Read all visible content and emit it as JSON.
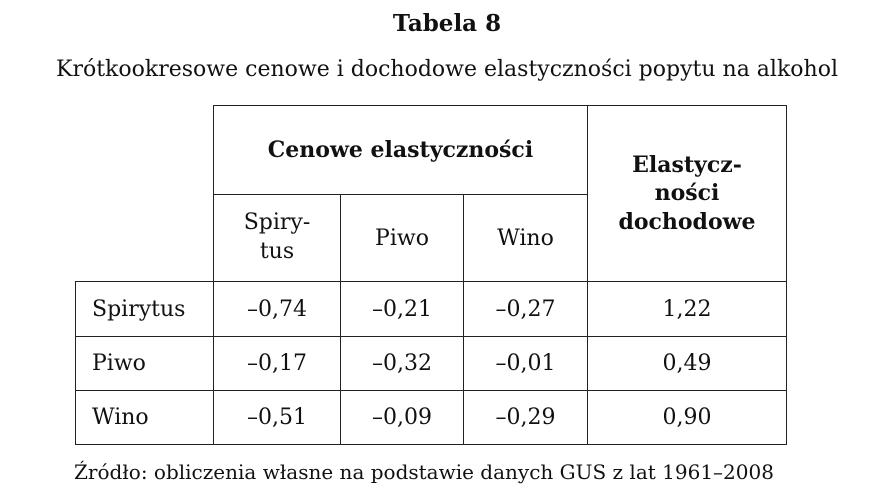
{
  "table_label": "Tabela 8",
  "table_title": "Krótkookresowe cenowe i dochodowe elastyczności popytu na alkohol",
  "table": {
    "group_header": "Cenowe elastyczności",
    "income_header_lines": [
      "Elastycz-",
      "ności",
      "dochodowe"
    ],
    "sub_headers": [
      [
        "Spiry-",
        "tus"
      ],
      [
        "Piwo"
      ],
      [
        "Wino"
      ]
    ],
    "rows": [
      {
        "label": "Spirytus",
        "values": [
          "–0,74",
          "–0,21",
          "–0,27",
          "1,22"
        ]
      },
      {
        "label": "Piwo",
        "values": [
          "–0,17",
          "–0,32",
          "–0,01",
          "0,49"
        ]
      },
      {
        "label": "Wino",
        "values": [
          "–0,51",
          "–0,09",
          "–0,29",
          "0,90"
        ]
      }
    ]
  },
  "source": "Źródło: obliczenia własne na podstawie danych GUS z lat 1961–2008"
}
